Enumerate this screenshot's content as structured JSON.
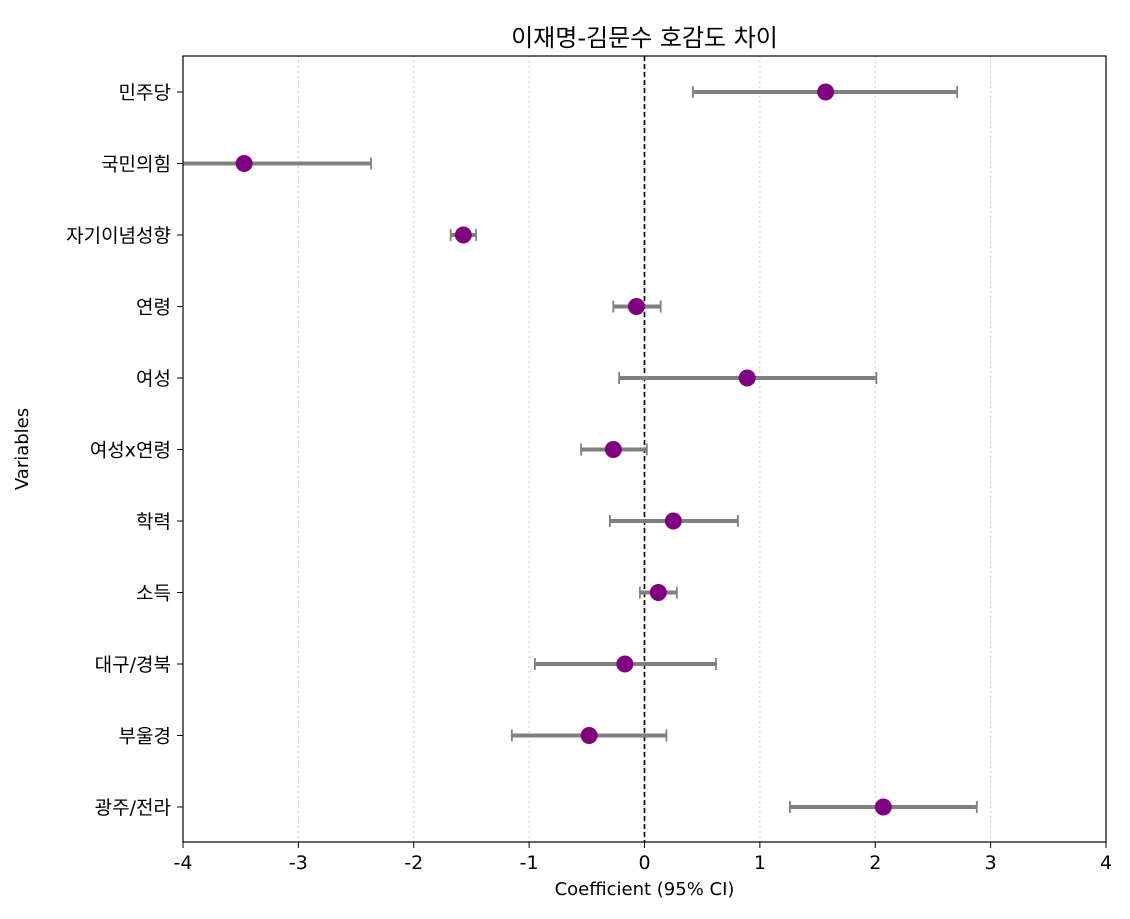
{
  "chart_data": {
    "type": "forest",
    "title": "이재명-김문수 호감도 차이",
    "xlabel": "Coefficient (95% CI)",
    "ylabel": "Variables",
    "xlim": [
      -4,
      4
    ],
    "xticks": [
      -4,
      -3,
      -2,
      -1,
      0,
      1,
      2,
      3,
      4
    ],
    "xtick_labels": [
      "-4",
      "-3",
      "-2",
      "-1",
      "0",
      "1",
      "2",
      "3",
      "4"
    ],
    "grid": "x-dotted",
    "reference_line": 0,
    "point_color": "#800080",
    "ci_color": "#808080",
    "categories": [
      "민주당",
      "국민의힘",
      "자기이념성향",
      "연령",
      "여성",
      "여성x연령",
      "학력",
      "소득",
      "대구/경북",
      "부울경",
      "광주/전라"
    ],
    "estimates": [
      1.57,
      -3.47,
      -1.57,
      -0.07,
      0.89,
      -0.27,
      0.25,
      0.12,
      -0.17,
      -0.48,
      2.07
    ],
    "ci_lower": [
      0.42,
      -4.0,
      -1.68,
      -0.27,
      -0.22,
      -0.55,
      -0.3,
      -0.04,
      -0.95,
      -1.15,
      1.26
    ],
    "ci_upper": [
      2.71,
      -2.37,
      -1.46,
      0.14,
      2.01,
      0.02,
      0.81,
      0.28,
      0.62,
      0.19,
      2.88
    ]
  }
}
